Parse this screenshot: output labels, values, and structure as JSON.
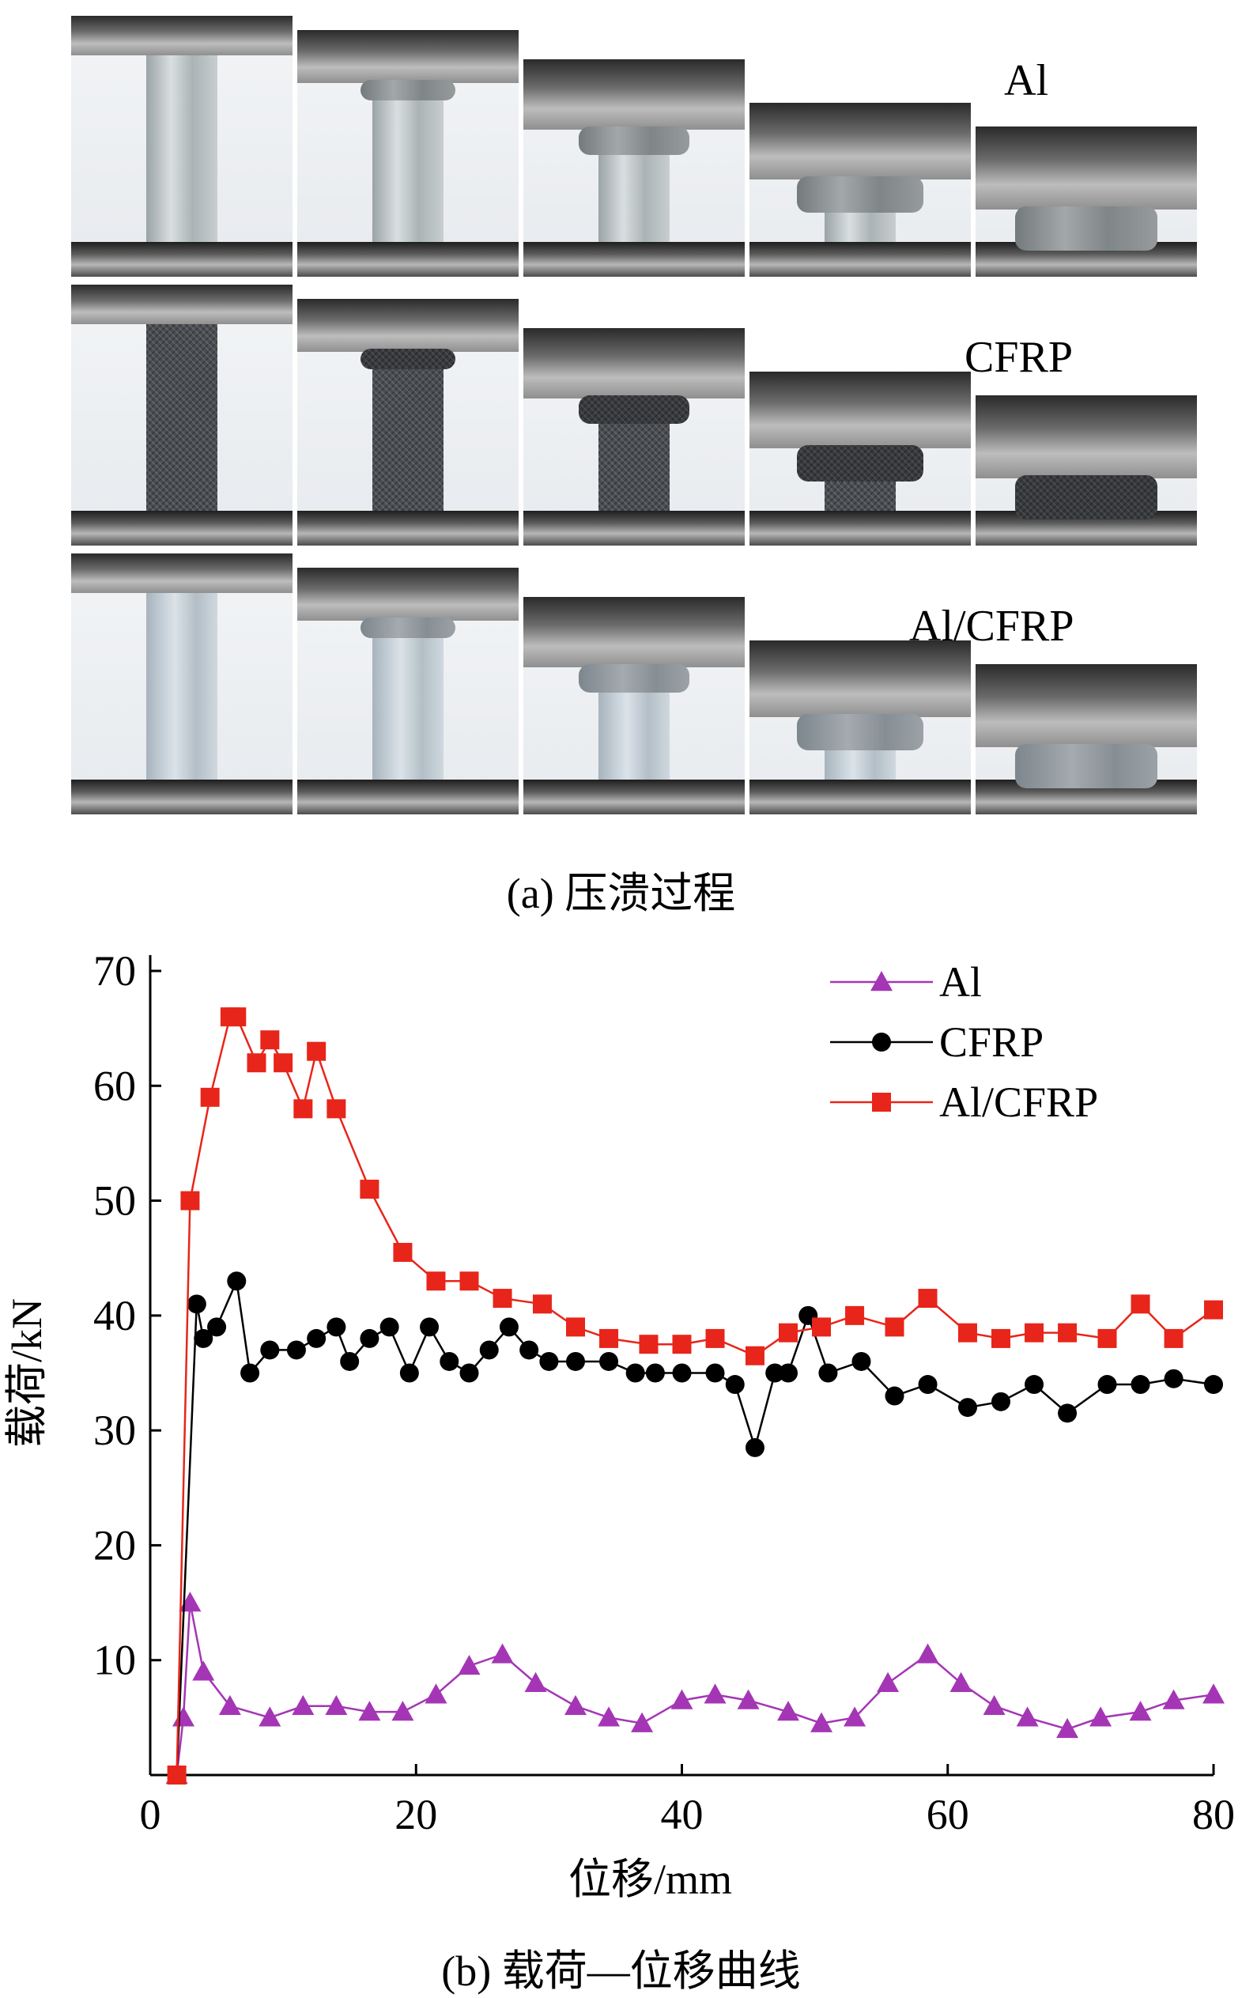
{
  "panel_a": {
    "caption": "(a) 压溃过程",
    "rows": [
      {
        "label": "Al",
        "kind": "al"
      },
      {
        "label": "CFRP",
        "kind": "cf"
      },
      {
        "label": "Al/CFRP",
        "kind": "hy"
      }
    ]
  },
  "panel_b": {
    "caption": "(b) 载荷—位移曲线"
  },
  "chart_data": {
    "type": "line",
    "xlabel": "位移/mm",
    "ylabel": "载荷/kN",
    "xlim": [
      0,
      80
    ],
    "ylim": [
      0,
      70
    ],
    "xticks": [
      0,
      20,
      40,
      60,
      80
    ],
    "yticks": [
      10,
      20,
      30,
      40,
      50,
      60,
      70
    ],
    "grid": false,
    "legend_position": "top-right",
    "series": [
      {
        "name": "Al",
        "color": "#a436b5",
        "marker": "triangle",
        "x": [
          2,
          2.5,
          3,
          4,
          6,
          9,
          11.5,
          14,
          16.5,
          19,
          21.5,
          24,
          26.5,
          29,
          32,
          34.5,
          37,
          40,
          42.5,
          45,
          48,
          50.5,
          53,
          55.5,
          58.5,
          61,
          63.5,
          66,
          69,
          71.5,
          74.5,
          77,
          80
        ],
        "y": [
          0,
          5,
          15,
          9,
          6,
          5,
          6,
          6,
          5.5,
          5.5,
          7,
          9.5,
          10.5,
          8,
          6,
          5,
          4.5,
          6.5,
          7,
          6.5,
          5.5,
          4.5,
          5,
          8,
          10.5,
          8,
          6,
          5,
          4,
          5,
          5.5,
          6.5,
          7
        ]
      },
      {
        "name": "CFRP",
        "color": "#000000",
        "marker": "circle",
        "x": [
          2,
          3.5,
          4,
          5,
          6.5,
          7.5,
          9,
          11,
          12.5,
          14,
          15,
          16.5,
          18,
          19.5,
          21,
          22.5,
          24,
          25.5,
          27,
          28.5,
          30,
          32,
          34.5,
          36.5,
          38,
          40,
          42.5,
          44,
          45.5,
          47,
          48,
          49.5,
          51,
          53.5,
          56,
          58.5,
          61.5,
          64,
          66.5,
          69,
          72,
          74.5,
          77,
          80
        ],
        "y": [
          0,
          41,
          38,
          39,
          43,
          35,
          37,
          37,
          38,
          39,
          36,
          38,
          39,
          35,
          39,
          36,
          35,
          37,
          39,
          37,
          36,
          36,
          36,
          35,
          35,
          35,
          35,
          34,
          28.5,
          35,
          35,
          40,
          35,
          36,
          33,
          34,
          32,
          32.5,
          34,
          31.5,
          34,
          34,
          34.5,
          34
        ]
      },
      {
        "name": "Al/CFRP",
        "color": "#e8251a",
        "marker": "square",
        "x": [
          2,
          3,
          4.5,
          6,
          6.5,
          8,
          9,
          10,
          11.5,
          12.5,
          14,
          16.5,
          19,
          21.5,
          24,
          26.5,
          29.5,
          32,
          34.5,
          37.5,
          40,
          42.5,
          45.5,
          48,
          50.5,
          53,
          56,
          58.5,
          61.5,
          64,
          66.5,
          69,
          72,
          74.5,
          77,
          80
        ],
        "y": [
          0,
          50,
          59,
          66,
          66,
          62,
          64,
          62,
          58,
          63,
          58,
          51,
          45.5,
          43,
          43,
          41.5,
          41,
          39,
          38,
          37.5,
          37.5,
          38,
          36.5,
          38.5,
          39,
          40,
          39,
          41.5,
          38.5,
          38,
          38.5,
          38.5,
          38,
          41,
          38,
          40.5
        ]
      }
    ]
  }
}
